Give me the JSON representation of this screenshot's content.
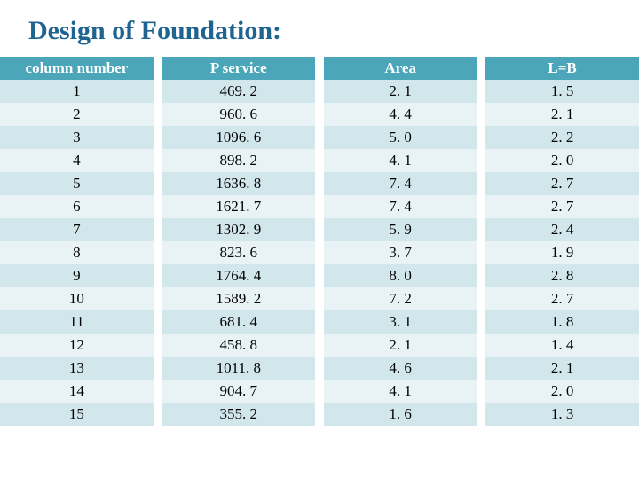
{
  "title": {
    "text": "Design of Foundation:",
    "color": "#1f6391",
    "fontsize": 30
  },
  "table": {
    "type": "table",
    "header_bg": "#4aa6b8",
    "header_text_color": "#ffffff",
    "row_bg_even": "#d2e7ec",
    "row_bg_odd": "#e9f3f5",
    "cell_text_color": "#000000",
    "header_fontsize": 17,
    "cell_fontsize": 17,
    "columns": [
      "column number",
      "P service",
      "Area",
      "L=B"
    ],
    "rows": [
      [
        "1",
        "469. 2",
        "2. 1",
        "1. 5"
      ],
      [
        "2",
        "960. 6",
        "4. 4",
        "2. 1"
      ],
      [
        "3",
        "1096. 6",
        "5. 0",
        "2. 2"
      ],
      [
        "4",
        "898. 2",
        "4. 1",
        "2. 0"
      ],
      [
        "5",
        "1636. 8",
        "7. 4",
        "2. 7"
      ],
      [
        "6",
        "1621. 7",
        "7. 4",
        "2. 7"
      ],
      [
        "7",
        "1302. 9",
        "5. 9",
        "2. 4"
      ],
      [
        "8",
        "823. 6",
        "3. 7",
        "1. 9"
      ],
      [
        "9",
        "1764. 4",
        "8. 0",
        "2. 8"
      ],
      [
        "10",
        "1589. 2",
        "7. 2",
        "2. 7"
      ],
      [
        "11",
        "681. 4",
        "3. 1",
        "1. 8"
      ],
      [
        "12",
        "458. 8",
        "2. 1",
        "1. 4"
      ],
      [
        "13",
        "1011. 8",
        "4. 6",
        "2. 1"
      ],
      [
        "14",
        "904. 7",
        "4. 1",
        "2. 0"
      ],
      [
        "15",
        "355. 2",
        "1. 6",
        "1. 3"
      ]
    ]
  }
}
